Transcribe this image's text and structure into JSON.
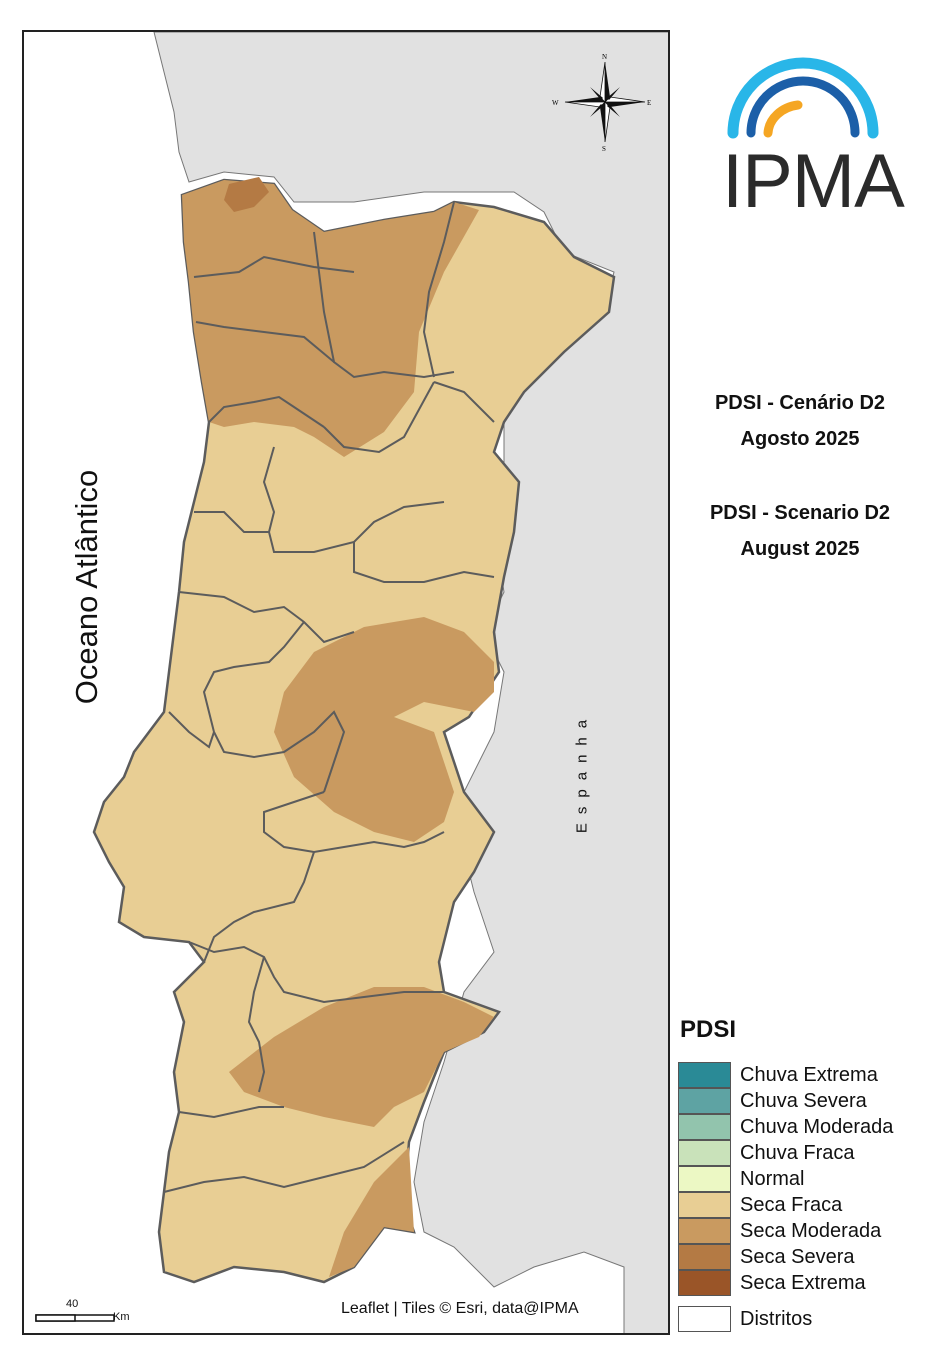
{
  "map": {
    "ocean_label": "Oceano Atlântico",
    "spain_label": "Espanha",
    "attribution": "Leaflet | Tiles © Esri, data@IPMA",
    "scale_value": "40",
    "scale_unit": "Km",
    "compass": {
      "n": "N",
      "s": "S",
      "e": "E",
      "w": "W"
    }
  },
  "logo": {
    "text": "IPMA",
    "colors": [
      "#29b6e8",
      "#1c5fa8",
      "#f5a623"
    ]
  },
  "titles": {
    "pt_line1": "PDSI - Cenário D2",
    "pt_line2": "Agosto 2025",
    "en_line1": "PDSI - Scenario D2",
    "en_line2": "August 2025"
  },
  "legend": {
    "title": "PDSI",
    "items": [
      {
        "label": "Chuva Extrema",
        "color": "#2a8a96"
      },
      {
        "label": "Chuva Severa",
        "color": "#5ea3a3"
      },
      {
        "label": "Chuva Moderada",
        "color": "#92c4ad"
      },
      {
        "label": "Chuva Fraca",
        "color": "#c9e2ba"
      },
      {
        "label": "Normal",
        "color": "#ecf8c4"
      },
      {
        "label": "Seca Fraca",
        "color": "#e8ce94"
      },
      {
        "label": "Seca Moderada",
        "color": "#c99a60"
      },
      {
        "label": "Seca Severa",
        "color": "#b47a44"
      },
      {
        "label": "Seca Extrema",
        "color": "#9a5528"
      }
    ],
    "districts_label": "Distritos"
  },
  "colors": {
    "land_spain": "#e1e1e1",
    "ocean": "#ffffff",
    "border": "#5c5c5c"
  }
}
